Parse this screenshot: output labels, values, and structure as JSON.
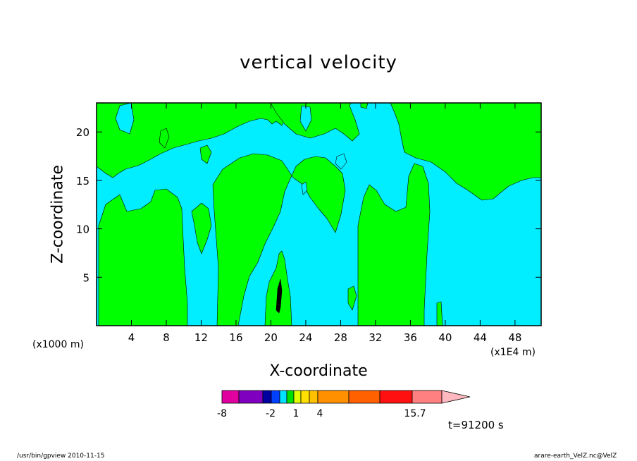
{
  "chart_data": {
    "type": "heatmap",
    "title": "vertical velocity",
    "xlabel": "X-coordinate",
    "ylabel": "Z-coordinate",
    "x_unit": "(x1000 m)",
    "x_scale_note": "(x1E4 m)",
    "xlim": [
      0,
      51
    ],
    "ylim": [
      0,
      23
    ],
    "x_ticks": [
      4,
      8,
      12,
      16,
      20,
      24,
      28,
      32,
      36,
      40,
      44,
      48
    ],
    "y_ticks": [
      5,
      10,
      15,
      20
    ],
    "colorbar": {
      "colors": [
        "#e000a0",
        "#8000c0",
        "#0000a0",
        "#0040ff",
        "#00e0ff",
        "#00e000",
        "#e0ff00",
        "#ffe000",
        "#ffc000",
        "#ff9000",
        "#ff6000",
        "#ff1010",
        "#ff8080",
        "#ffb8c0"
      ],
      "tick_labels": [
        "-8",
        "-2",
        "1",
        "4",
        "15.7"
      ]
    },
    "fill_colors": {
      "positive": "#00ff00",
      "negative": "#00eeff",
      "strong": "#000000"
    },
    "time_label": "t=91200 s"
  },
  "footer": {
    "left": "/usr/bin/gpview   2010-11-15",
    "right": "arare-earth_VelZ.nc@VelZ"
  }
}
